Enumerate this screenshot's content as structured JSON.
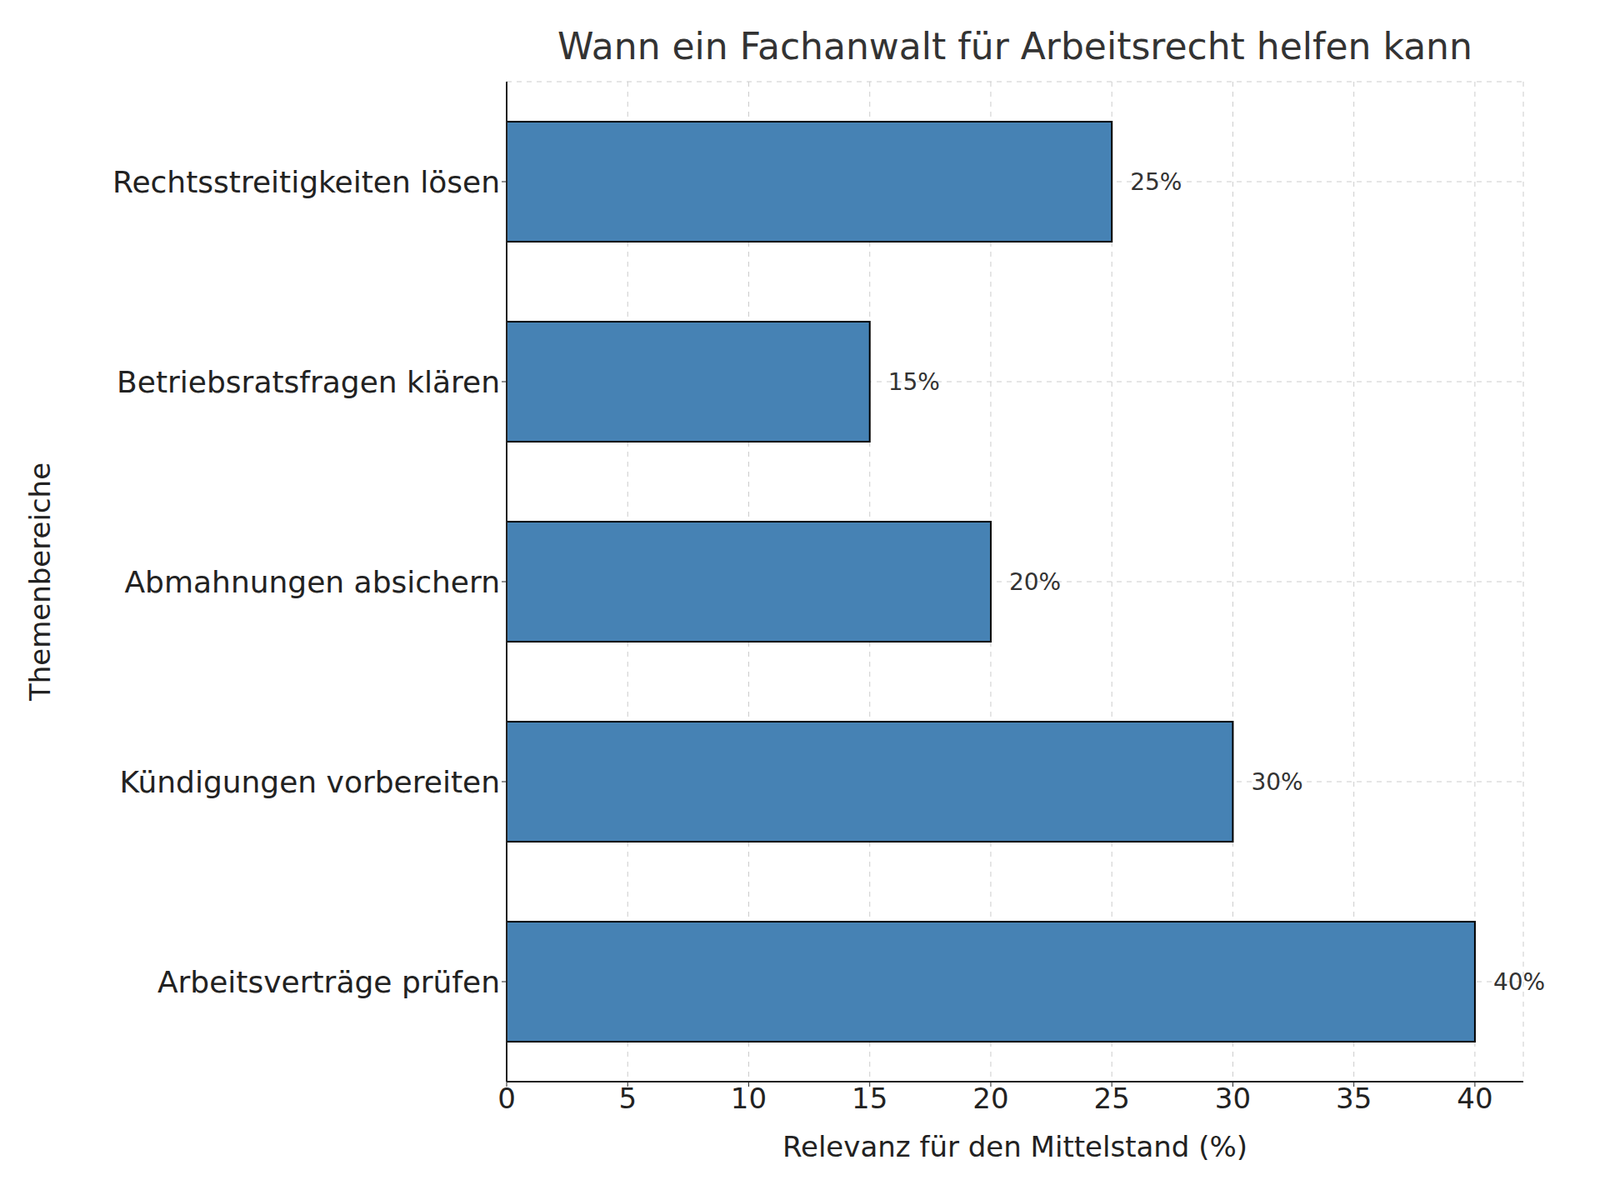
{
  "chart_data": {
    "type": "bar",
    "orientation": "horizontal",
    "title": "Wann ein Fachanwalt für Arbeitsrecht helfen kann",
    "x_label": "Relevanz für den Mittelstand (%)",
    "y_label": "Themenbereiche",
    "categories": [
      "Rechtsstreitigkeiten lösen",
      "Betriebsratsfragen klären",
      "Abmahnungen absichern",
      "Kündigungen vorbereiten",
      "Arbeitsverträge prüfen"
    ],
    "values": [
      25,
      15,
      20,
      30,
      40
    ],
    "value_labels": [
      "25%",
      "15%",
      "20%",
      "30%",
      "40%"
    ],
    "data_labels": true,
    "color": "#4682b4",
    "xlim": [
      0,
      42
    ],
    "xticks": [
      0,
      5,
      10,
      15,
      20,
      25,
      30,
      35,
      40
    ],
    "grid": true
  }
}
